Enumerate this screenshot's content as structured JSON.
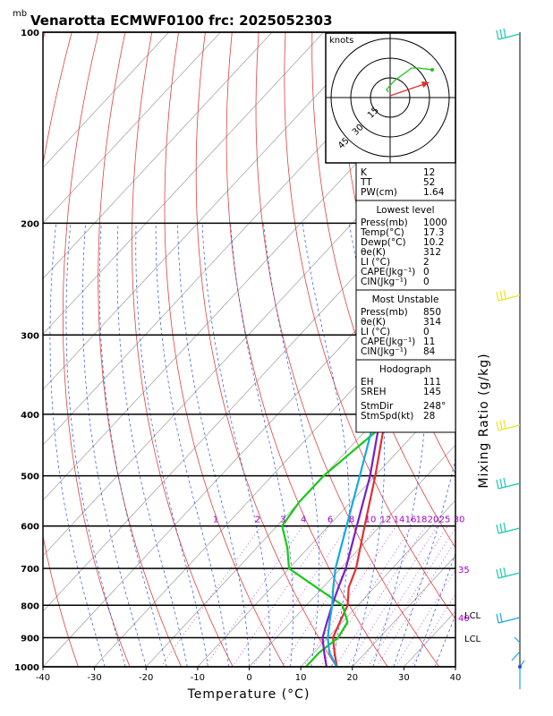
{
  "title": "Venarotta ECMWF0100 frc: 2025052303",
  "pressure_unit": "mb",
  "chart_data": {
    "type": "line",
    "xlabel": "Temperature (°C)",
    "ylabel": "Mixing Ratio (g/kg)",
    "xlim": [
      -40,
      40
    ],
    "ylim": [
      1000,
      100
    ],
    "x_ticks": [
      "-40",
      "-30",
      "-20",
      "-10",
      "0",
      "10",
      "20",
      "30",
      "40"
    ],
    "pressure_levels": [
      "100",
      "200",
      "300",
      "400",
      "500",
      "600",
      "700",
      "800",
      "900",
      "1000"
    ],
    "mixing_ratio_labels": [
      "1",
      "2",
      "3",
      "4",
      "6",
      "8",
      "10",
      "12",
      "14",
      "16",
      "18",
      "20",
      "25",
      "30"
    ],
    "series": [
      {
        "color": "#e03030",
        "points": [
          [
            1000,
            17
          ],
          [
            950,
            14
          ],
          [
            900,
            11
          ],
          [
            850,
            9.5
          ],
          [
            800,
            8
          ],
          [
            750,
            5
          ],
          [
            700,
            3
          ],
          [
            600,
            -3
          ],
          [
            500,
            -10
          ],
          [
            400,
            -19
          ],
          [
            300,
            -29
          ],
          [
            250,
            -31
          ],
          [
            200,
            -22
          ],
          [
            150,
            -5
          ],
          [
            120,
            4
          ],
          [
            100,
            11
          ]
        ]
      },
      {
        "color": "#18c818",
        "points": [
          [
            1000,
            11
          ],
          [
            950,
            11
          ],
          [
            900,
            12
          ],
          [
            850,
            11
          ],
          [
            800,
            7
          ],
          [
            700,
            -10
          ],
          [
            650,
            -14
          ],
          [
            600,
            -19
          ],
          [
            550,
            -20
          ],
          [
            500,
            -20
          ],
          [
            400,
            -17
          ],
          [
            300,
            -21
          ],
          [
            250,
            -21
          ],
          [
            200,
            -18
          ],
          [
            150,
            -16
          ],
          [
            100,
            -13
          ]
        ]
      },
      {
        "color": "#7a1ec8",
        "points": [
          [
            1000,
            15
          ],
          [
            950,
            12
          ],
          [
            900,
            9
          ],
          [
            850,
            7
          ],
          [
            800,
            5
          ],
          [
            750,
            3
          ],
          [
            700,
            1
          ],
          [
            600,
            -4.5
          ],
          [
            500,
            -11
          ],
          [
            400,
            -20
          ],
          [
            350,
            -26
          ],
          [
            300,
            -32
          ],
          [
            250,
            -40
          ],
          [
            200,
            -47
          ],
          [
            150,
            -56
          ],
          [
            120,
            -64
          ]
        ]
      },
      {
        "color": "#18a8e0",
        "points": [
          [
            1000,
            17
          ],
          [
            950,
            13
          ],
          [
            900,
            10
          ],
          [
            850,
            7.5
          ],
          [
            800,
            5
          ],
          [
            750,
            2
          ],
          [
            700,
            -1
          ],
          [
            600,
            -6.5
          ],
          [
            500,
            -13
          ],
          [
            400,
            -21
          ],
          [
            350,
            -27
          ],
          [
            300,
            -33.5
          ],
          [
            250,
            -41
          ],
          [
            200,
            -50
          ],
          [
            150,
            -62
          ],
          [
            100,
            -75
          ]
        ]
      }
    ]
  },
  "hodograph": {
    "unit": "knots",
    "ring_labels": [
      "15",
      "30",
      "45"
    ]
  },
  "indices": [
    {
      "label": "K",
      "value": "12"
    },
    {
      "label": "TT",
      "value": "52"
    },
    {
      "label": "PW(cm)",
      "value": "1.64"
    }
  ],
  "lowest_level": {
    "heading": "Lowest level",
    "rows": [
      {
        "label": "Press(mb)",
        "value": "1000"
      },
      {
        "label": "Temp(°C)",
        "value": "17.3"
      },
      {
        "label": "Dewp(°C)",
        "value": "10.2"
      },
      {
        "label": "θe(K)",
        "value": "312"
      },
      {
        "label": "LI (°C)",
        "value": "2"
      },
      {
        "label": "CAPE(Jkg⁻¹)",
        "value": "0"
      },
      {
        "label": "CIN(Jkg⁻¹)",
        "value": "0"
      }
    ]
  },
  "most_unstable": {
    "heading": "Most Unstable",
    "rows": [
      {
        "label": "Press(mb)",
        "value": "850"
      },
      {
        "label": "θe(K)",
        "value": "314"
      },
      {
        "label": "LI (°C)",
        "value": "0"
      },
      {
        "label": "CAPE(Jkg⁻¹)",
        "value": "11"
      },
      {
        "label": "CIN(Jkg⁻¹)",
        "value": "84"
      }
    ]
  },
  "hodograph_params": {
    "heading": "Hodograph",
    "rows": [
      {
        "label": "EH",
        "value": "111"
      },
      {
        "label": "SREH",
        "value": "145"
      },
      {
        "label": "StmDir",
        "value": "248°"
      },
      {
        "label": "StmSpd(kt)",
        "value": "28"
      }
    ]
  },
  "side_labels": {
    "lcl": "LCL",
    "lcl2": "LCL",
    "marker35": "35",
    "marker40": "40"
  }
}
